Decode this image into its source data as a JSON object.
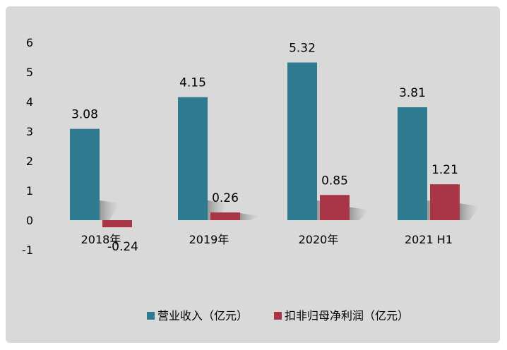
{
  "chart_data": {
    "type": "bar",
    "categories": [
      "2018年",
      "2019年",
      "2020年",
      "2021 H1"
    ],
    "series": [
      {
        "name": "营业收入（亿元）",
        "color": "#2e7a91",
        "values": [
          3.08,
          4.15,
          5.32,
          3.81
        ],
        "labels": [
          "3.08",
          "4.15",
          "5.32",
          "3.81"
        ]
      },
      {
        "name": "扣非归母净利润（亿元）",
        "color": "#a83646",
        "values": [
          -0.24,
          0.26,
          0.85,
          1.21
        ],
        "labels": [
          "-0.24",
          "0.26",
          "0.85",
          "1.21"
        ]
      }
    ],
    "ylim": [
      -1,
      6
    ],
    "yticks": [
      "-1",
      "0",
      "1",
      "2",
      "3",
      "4",
      "5",
      "6"
    ],
    "legend_position": "bottom",
    "grid": false
  }
}
